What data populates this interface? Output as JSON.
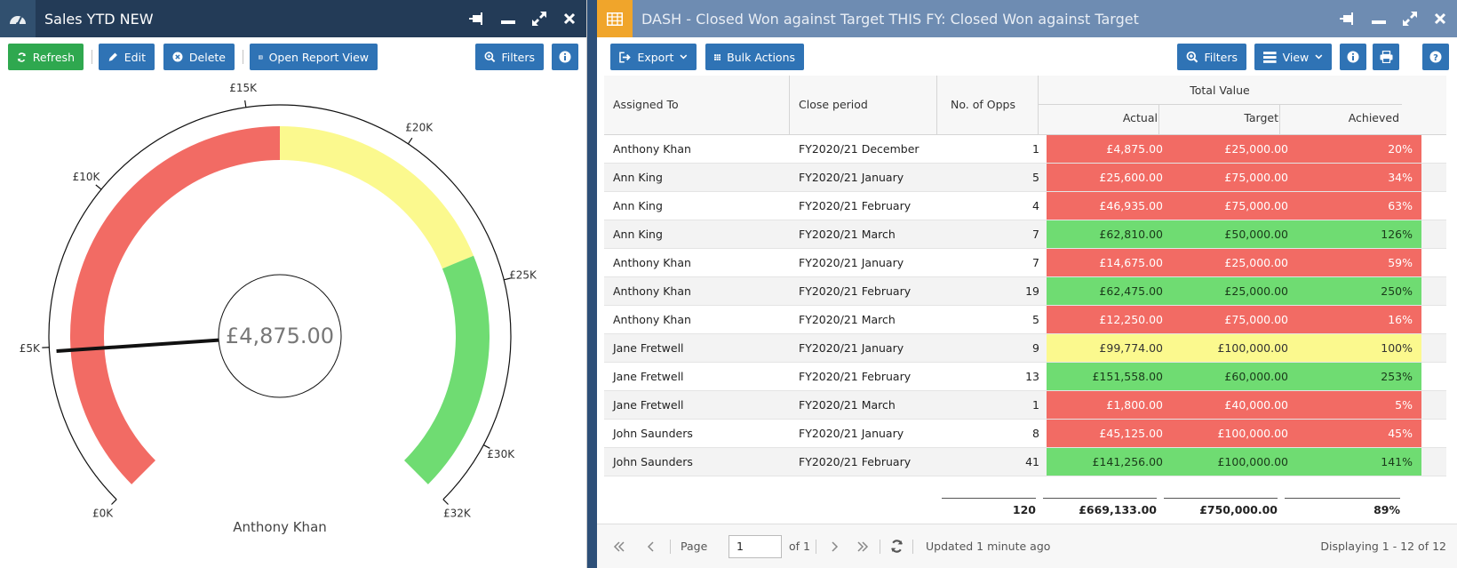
{
  "left_panel": {
    "title": "Sales YTD NEW",
    "toolbar": {
      "refresh": "Refresh",
      "edit": "Edit",
      "delete": "Delete",
      "open_report_view": "Open Report View",
      "filters": "Filters"
    },
    "gauge": {
      "value_label": "£4,875.00",
      "value": 4875,
      "min": 0,
      "max": 32000,
      "person": "Anthony Khan",
      "ticks": [
        {
          "value": 0,
          "label": "£0K"
        },
        {
          "value": 5000,
          "label": "£5K"
        },
        {
          "value": 10000,
          "label": "£10K"
        },
        {
          "value": 15000,
          "label": "£15K"
        },
        {
          "value": 20000,
          "label": "£20K"
        },
        {
          "value": 25000,
          "label": "£25K"
        },
        {
          "value": 30000,
          "label": "£30K"
        },
        {
          "value": 32000,
          "label": "£32K"
        }
      ],
      "bands": [
        {
          "from": 0,
          "to": 16000,
          "color": "#f26b64"
        },
        {
          "from": 16000,
          "to": 24000,
          "color": "#fbf98e"
        },
        {
          "from": 24000,
          "to": 32000,
          "color": "#6fdc72"
        }
      ]
    }
  },
  "right_panel": {
    "title": "DASH - Closed Won against Target THIS FY: Closed Won against Target",
    "toolbar": {
      "export": "Export",
      "bulk_actions": "Bulk Actions",
      "filters": "Filters",
      "view": "View"
    },
    "columns": {
      "assigned_to": "Assigned To",
      "close_period": "Close period",
      "no_of_opps": "No. of Opps",
      "total_value": "Total Value",
      "actual": "Actual",
      "target": "Target",
      "achieved": "Achieved"
    },
    "rows": [
      {
        "assigned": "Anthony Khan",
        "period": "FY2020/21 December",
        "opps": "1",
        "actual": "£4,875.00",
        "target": "£25,000.00",
        "achieved": "20%",
        "status": "red"
      },
      {
        "assigned": "Ann King",
        "period": "FY2020/21 January",
        "opps": "5",
        "actual": "£25,600.00",
        "target": "£75,000.00",
        "achieved": "34%",
        "status": "red"
      },
      {
        "assigned": "Ann King",
        "period": "FY2020/21 February",
        "opps": "4",
        "actual": "£46,935.00",
        "target": "£75,000.00",
        "achieved": "63%",
        "status": "red"
      },
      {
        "assigned": "Ann King",
        "period": "FY2020/21 March",
        "opps": "7",
        "actual": "£62,810.00",
        "target": "£50,000.00",
        "achieved": "126%",
        "status": "green"
      },
      {
        "assigned": "Anthony Khan",
        "period": "FY2020/21 January",
        "opps": "7",
        "actual": "£14,675.00",
        "target": "£25,000.00",
        "achieved": "59%",
        "status": "red"
      },
      {
        "assigned": "Anthony Khan",
        "period": "FY2020/21 February",
        "opps": "19",
        "actual": "£62,475.00",
        "target": "£25,000.00",
        "achieved": "250%",
        "status": "green"
      },
      {
        "assigned": "Anthony Khan",
        "period": "FY2020/21 March",
        "opps": "5",
        "actual": "£12,250.00",
        "target": "£75,000.00",
        "achieved": "16%",
        "status": "red"
      },
      {
        "assigned": "Jane Fretwell",
        "period": "FY2020/21 January",
        "opps": "9",
        "actual": "£99,774.00",
        "target": "£100,000.00",
        "achieved": "100%",
        "status": "yellow"
      },
      {
        "assigned": "Jane Fretwell",
        "period": "FY2020/21 February",
        "opps": "13",
        "actual": "£151,558.00",
        "target": "£60,000.00",
        "achieved": "253%",
        "status": "green"
      },
      {
        "assigned": "Jane Fretwell",
        "period": "FY2020/21 March",
        "opps": "1",
        "actual": "£1,800.00",
        "target": "£40,000.00",
        "achieved": "5%",
        "status": "red"
      },
      {
        "assigned": "John Saunders",
        "period": "FY2020/21 January",
        "opps": "8",
        "actual": "£45,125.00",
        "target": "£100,000.00",
        "achieved": "45%",
        "status": "red"
      },
      {
        "assigned": "John Saunders",
        "period": "FY2020/21 February",
        "opps": "41",
        "actual": "£141,256.00",
        "target": "£100,000.00",
        "achieved": "141%",
        "status": "green"
      }
    ],
    "totals": {
      "opps": "120",
      "actual": "£669,133.00",
      "target": "£750,000.00",
      "achieved": "89%"
    },
    "pager": {
      "page_label": "Page",
      "page_value": "1",
      "of_label": "of 1",
      "updated": "Updated 1 minute ago",
      "displaying": "Displaying 1 - 12 of 12"
    }
  },
  "colors": {
    "red": "#f26b64",
    "green": "#6fdc72",
    "yellow": "#fbf98e",
    "button_blue": "#2f73b5",
    "button_green": "#2fa84f"
  },
  "icons": {
    "left_title": "dashboard-gauge-icon",
    "right_title": "grid-table-icon",
    "window": [
      "pin-icon",
      "minimize-icon",
      "maximize-icon",
      "close-icon"
    ]
  }
}
